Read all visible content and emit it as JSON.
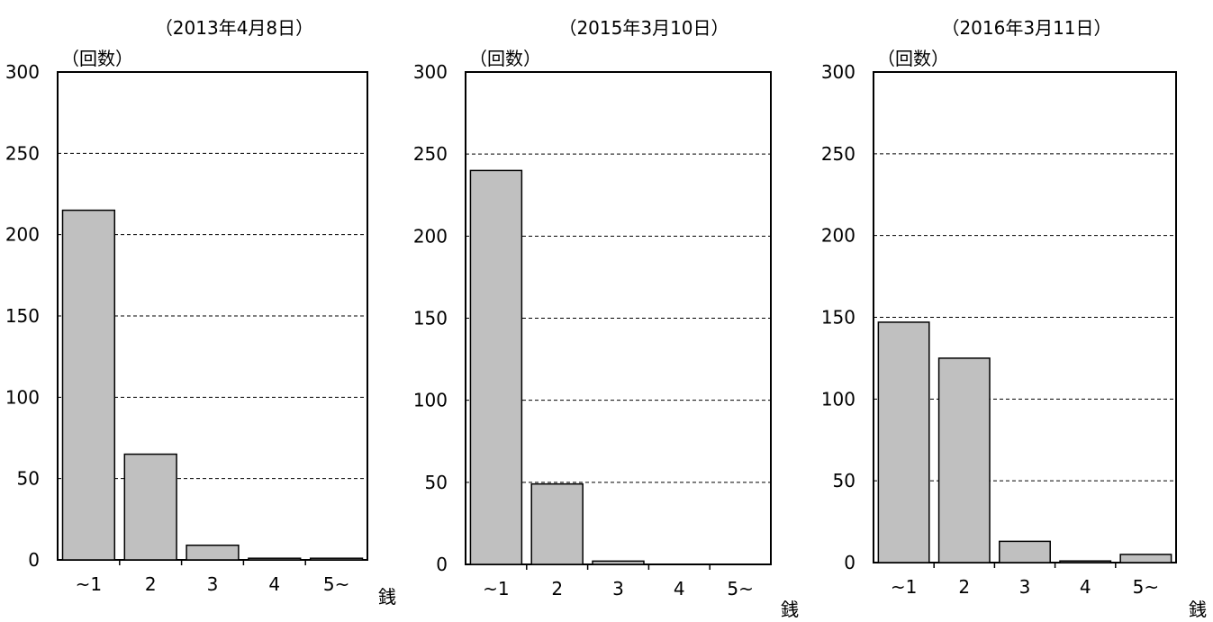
{
  "chart_data": [
    {
      "type": "bar",
      "title": "（2013年4月8日）",
      "ylabel": "（回数）",
      "xlabel": "銭",
      "categories": [
        "~1",
        "2",
        "3",
        "4",
        "5~"
      ],
      "values": [
        215,
        65,
        9,
        1,
        1
      ],
      "ylim": [
        0,
        300
      ],
      "yticks": [
        0,
        50,
        100,
        150,
        200,
        250,
        300
      ],
      "grid": true
    },
    {
      "type": "bar",
      "title": "（2015年3月10日）",
      "ylabel": "（回数）",
      "xlabel": "銭",
      "categories": [
        "~1",
        "2",
        "3",
        "4",
        "5~"
      ],
      "values": [
        240,
        49,
        2,
        0,
        0
      ],
      "ylim": [
        0,
        300
      ],
      "yticks": [
        0,
        50,
        100,
        150,
        200,
        250,
        300
      ],
      "grid": true
    },
    {
      "type": "bar",
      "title": "（2016年3月11日）",
      "ylabel": "（回数）",
      "xlabel": "銭",
      "categories": [
        "~1",
        "2",
        "3",
        "4",
        "5~"
      ],
      "values": [
        147,
        125,
        13,
        1,
        5
      ],
      "ylim": [
        0,
        300
      ],
      "yticks": [
        0,
        50,
        100,
        150,
        200,
        250,
        300
      ],
      "grid": true
    }
  ],
  "colors": {
    "bar_fill": "#c0c0c0",
    "bar_stroke": "#000000",
    "grid": "#000000"
  }
}
